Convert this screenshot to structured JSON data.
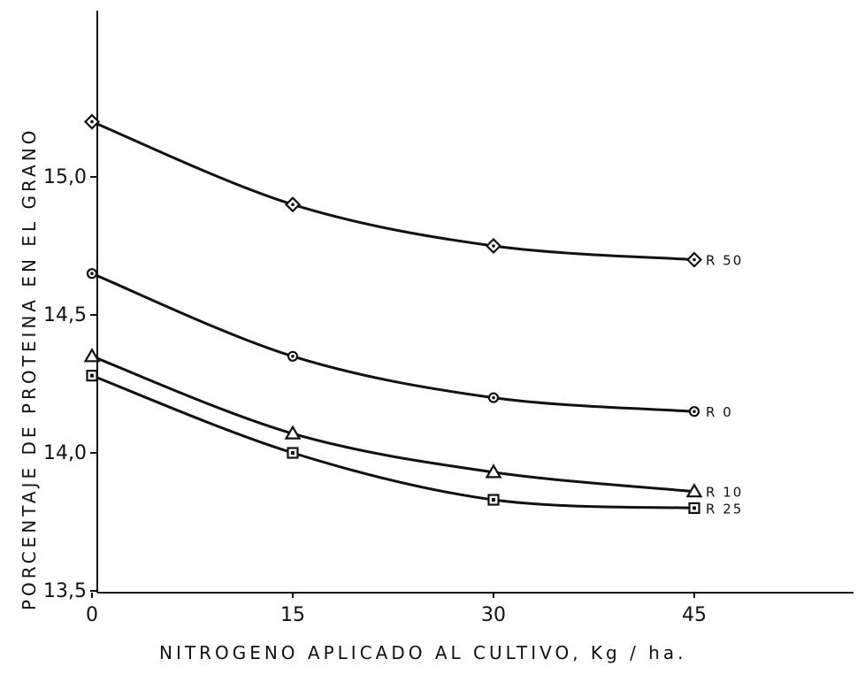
{
  "chart_data": {
    "type": "line",
    "xlabel": "NITROGENO APLICADO AL CULTIVO, Kg / ha.",
    "ylabel": "PORCENTAJE DE PROTEINA EN EL GRANO",
    "xlim": [
      0,
      55
    ],
    "ylim": [
      13.5,
      15.5
    ],
    "x_ticks": [
      0,
      15,
      30,
      45
    ],
    "x_tick_labels": [
      "0",
      "15",
      "30",
      "45"
    ],
    "y_ticks": [
      13.5,
      14.0,
      14.5,
      15.0
    ],
    "y_tick_labels": [
      "13,5",
      "14,0",
      "14,5",
      "15,0"
    ],
    "grid": false,
    "series": [
      {
        "name": "R 50",
        "marker": "diamond",
        "x": [
          0,
          15,
          30,
          45
        ],
        "y": [
          15.2,
          14.9,
          14.75,
          14.7
        ]
      },
      {
        "name": "R 0",
        "marker": "circle",
        "x": [
          0,
          15,
          30,
          45
        ],
        "y": [
          14.65,
          14.35,
          14.2,
          14.15
        ]
      },
      {
        "name": "R 10",
        "marker": "triangle",
        "x": [
          0,
          15,
          30,
          45
        ],
        "y": [
          14.35,
          14.07,
          13.93,
          13.86
        ]
      },
      {
        "name": "R 25",
        "marker": "square",
        "x": [
          0,
          15,
          30,
          45
        ],
        "y": [
          14.28,
          14.0,
          13.83,
          13.8
        ]
      }
    ]
  }
}
